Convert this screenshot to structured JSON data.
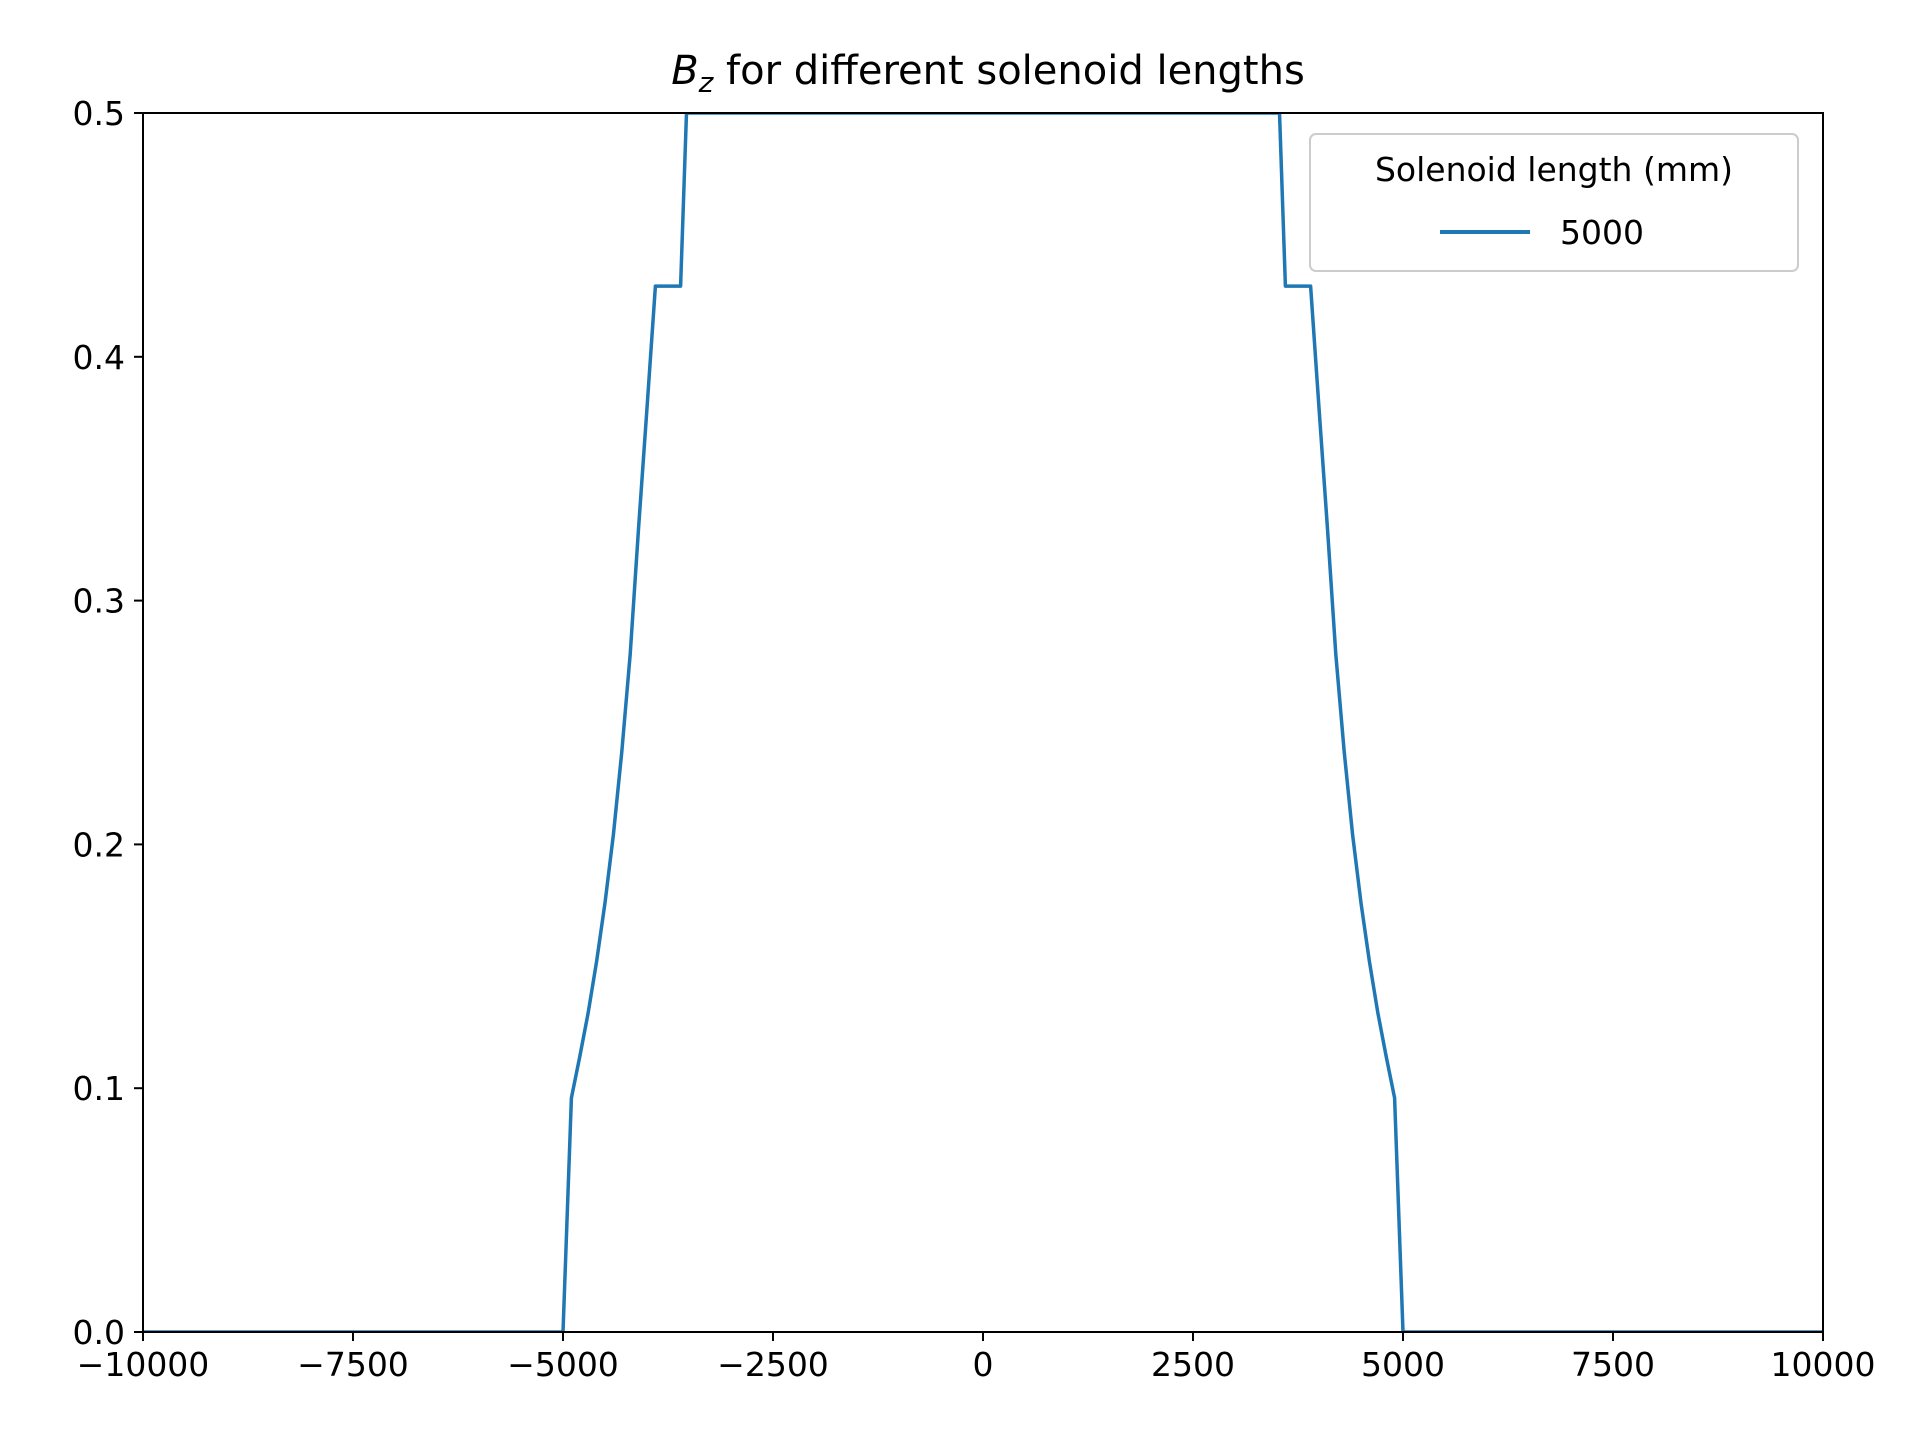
{
  "chart_data": {
    "type": "line",
    "title": {
      "symbol": "B",
      "subscript": "z",
      "text": " for different solenoid lengths"
    },
    "xlabel": "",
    "ylabel": "",
    "xlim": [
      -10000,
      10000
    ],
    "ylim": [
      0,
      0.5
    ],
    "xticks": [
      -10000,
      -7500,
      -5000,
      -2500,
      0,
      2500,
      5000,
      7500,
      10000
    ],
    "xtick_labels": [
      "−10000",
      "−7500",
      "−5000",
      "−2500",
      "0",
      "2500",
      "5000",
      "7500",
      "10000"
    ],
    "yticks": [
      0,
      0.1,
      0.2,
      0.3,
      0.4,
      0.5
    ],
    "ytick_labels": [
      "0.0",
      "0.1",
      "0.2",
      "0.3",
      "0.4",
      "0.5"
    ],
    "grid": false,
    "legend": {
      "title": "Solenoid length (mm)",
      "placement": "top-right"
    },
    "series": [
      {
        "name": "5000",
        "color": "#1f77b4",
        "x": [
          -10000,
          -5000,
          -4900,
          -4800,
          -4700,
          -4600,
          -4500,
          -4400,
          -4300,
          -4200,
          -4100,
          -4000,
          -3900,
          -3800,
          -3700,
          -3600,
          -3530,
          3530,
          3600,
          3700,
          3800,
          3900,
          4000,
          4100,
          4200,
          4300,
          4400,
          4500,
          4600,
          4700,
          4800,
          4900,
          5000,
          10000
        ],
        "y": [
          0,
          0,
          0.096,
          0.113,
          0.131,
          0.152,
          0.176,
          0.204,
          0.238,
          0.278,
          0.33,
          0.379,
          0.429,
          0.429,
          0.429,
          0.429,
          0.5,
          0.5,
          0.429,
          0.429,
          0.429,
          0.429,
          0.379,
          0.33,
          0.278,
          0.238,
          0.204,
          0.176,
          0.152,
          0.131,
          0.113,
          0.096,
          0,
          0
        ]
      }
    ]
  }
}
